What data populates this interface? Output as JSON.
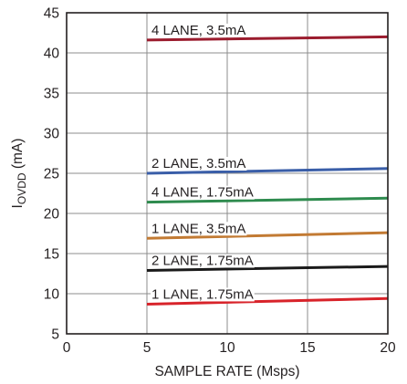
{
  "chart_data": {
    "type": "line",
    "xlabel": "SAMPLE RATE (Msps)",
    "ylabel_main": "I",
    "ylabel_sub": "OVDD",
    "ylabel_unit": " (mA)",
    "xlim": [
      0,
      20
    ],
    "ylim": [
      5,
      45
    ],
    "xticks": [
      0,
      5,
      10,
      15,
      20
    ],
    "yticks": [
      5,
      10,
      15,
      20,
      25,
      30,
      35,
      40,
      45
    ],
    "grid": true,
    "series": [
      {
        "name": "4 LANE, 3.5mA",
        "color": "#9b1c2e",
        "x": [
          5,
          20
        ],
        "y": [
          41.6,
          42.0
        ]
      },
      {
        "name": "2 LANE, 3.5mA",
        "color": "#3a5ea8",
        "x": [
          5,
          20
        ],
        "y": [
          25.0,
          25.6
        ]
      },
      {
        "name": "4 LANE, 1.75mA",
        "color": "#2e8b4e",
        "x": [
          5,
          20
        ],
        "y": [
          21.4,
          21.9
        ]
      },
      {
        "name": "1 LANE, 3.5mA",
        "color": "#c27a33",
        "x": [
          5,
          20
        ],
        "y": [
          16.9,
          17.6
        ]
      },
      {
        "name": "2 LANE, 1.75mA",
        "color": "#1a1a1a",
        "x": [
          5,
          20
        ],
        "y": [
          12.9,
          13.4
        ]
      },
      {
        "name": "1 LANE, 1.75mA",
        "color": "#d8232a",
        "x": [
          5,
          20
        ],
        "y": [
          8.7,
          9.4
        ]
      }
    ]
  }
}
